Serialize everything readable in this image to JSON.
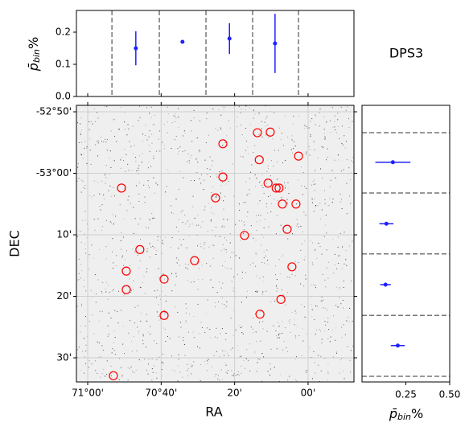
{
  "chart_data": [
    {
      "type": "scatter",
      "x_label": "RA",
      "y_label": "DEC",
      "color": "#ff0000",
      "grid": true,
      "x": [
        13.8,
        10.3,
        23.2,
        2.6,
        13.3,
        23.2,
        50.8,
        10.9,
        8.7,
        7.9,
        25.2,
        7.0,
        3.3,
        5.7,
        17.3,
        45.8,
        30.9,
        49.5,
        4.4,
        39.2,
        49.5,
        7.4,
        39.2,
        13.1,
        53.0
      ],
      "y": [
        6.6,
        6.7,
        4.8,
        2.8,
        2.2,
        -0.6,
        -2.4,
        -1.6,
        -2.4,
        -2.4,
        -4.0,
        -5.0,
        -5.0,
        -9.1,
        -10.1,
        -12.4,
        -14.2,
        -15.9,
        -15.2,
        -17.2,
        -18.9,
        -20.5,
        -23.1,
        -22.9,
        -32.9
      ],
      "xlim": [
        63.07,
        -12.49
      ],
      "ylim": [
        -33.92,
        11.05
      ],
      "xticks": [
        {
          "value": 60,
          "label": "71°00'"
        },
        {
          "value": 40,
          "label": "70°40'"
        },
        {
          "value": 20,
          "label": "20'"
        },
        {
          "value": 0,
          "label": "00'"
        }
      ],
      "yticks": [
        {
          "value": 10,
          "label": "-52°50'"
        },
        {
          "value": 0,
          "label": "-53°00'"
        },
        {
          "value": -10,
          "label": "10'"
        },
        {
          "value": -20,
          "label": "20'"
        },
        {
          "value": -30,
          "label": "30'"
        }
      ]
    },
    {
      "type": "errorbar",
      "annotation": "DPS3",
      "y_label": {
        "symbol": "p̄",
        "sub": "bin",
        "unit": "%"
      },
      "color": "#2020ff",
      "x": [
        46.9,
        34.2,
        21.4,
        9.0
      ],
      "values": [
        0.15,
        0.17,
        0.18,
        0.165
      ],
      "errors": [
        0.053,
        0.005,
        0.048,
        0.092
      ],
      "bin_edges": [
        53.4,
        40.5,
        27.8,
        15.1,
        2.6
      ],
      "xlim": [
        63.07,
        -12.49
      ],
      "ylim": [
        0,
        0.2675
      ],
      "yticks": [
        {
          "value": 0,
          "label": "0.0"
        },
        0.1,
        0.2
      ]
    },
    {
      "type": "errorbar_h",
      "x_label": {
        "symbol": "p̄",
        "sub": "bin",
        "unit": "%"
      },
      "color": "#2020ff",
      "y": [
        1.8,
        -8.2,
        -18.1,
        -28.0
      ],
      "values": [
        0.176,
        0.139,
        0.134,
        0.204
      ],
      "errors": [
        0.1,
        0.04,
        0.03,
        0.04
      ],
      "bin_edges": [
        6.6,
        -3.2,
        -13.1,
        -23.1,
        -33.0
      ],
      "xlim": [
        0,
        0.5
      ],
      "ylim": [
        -33.92,
        11.05
      ],
      "xticks": [
        0.25,
        {
          "value": 0.5,
          "label": "0.50"
        }
      ]
    }
  ]
}
